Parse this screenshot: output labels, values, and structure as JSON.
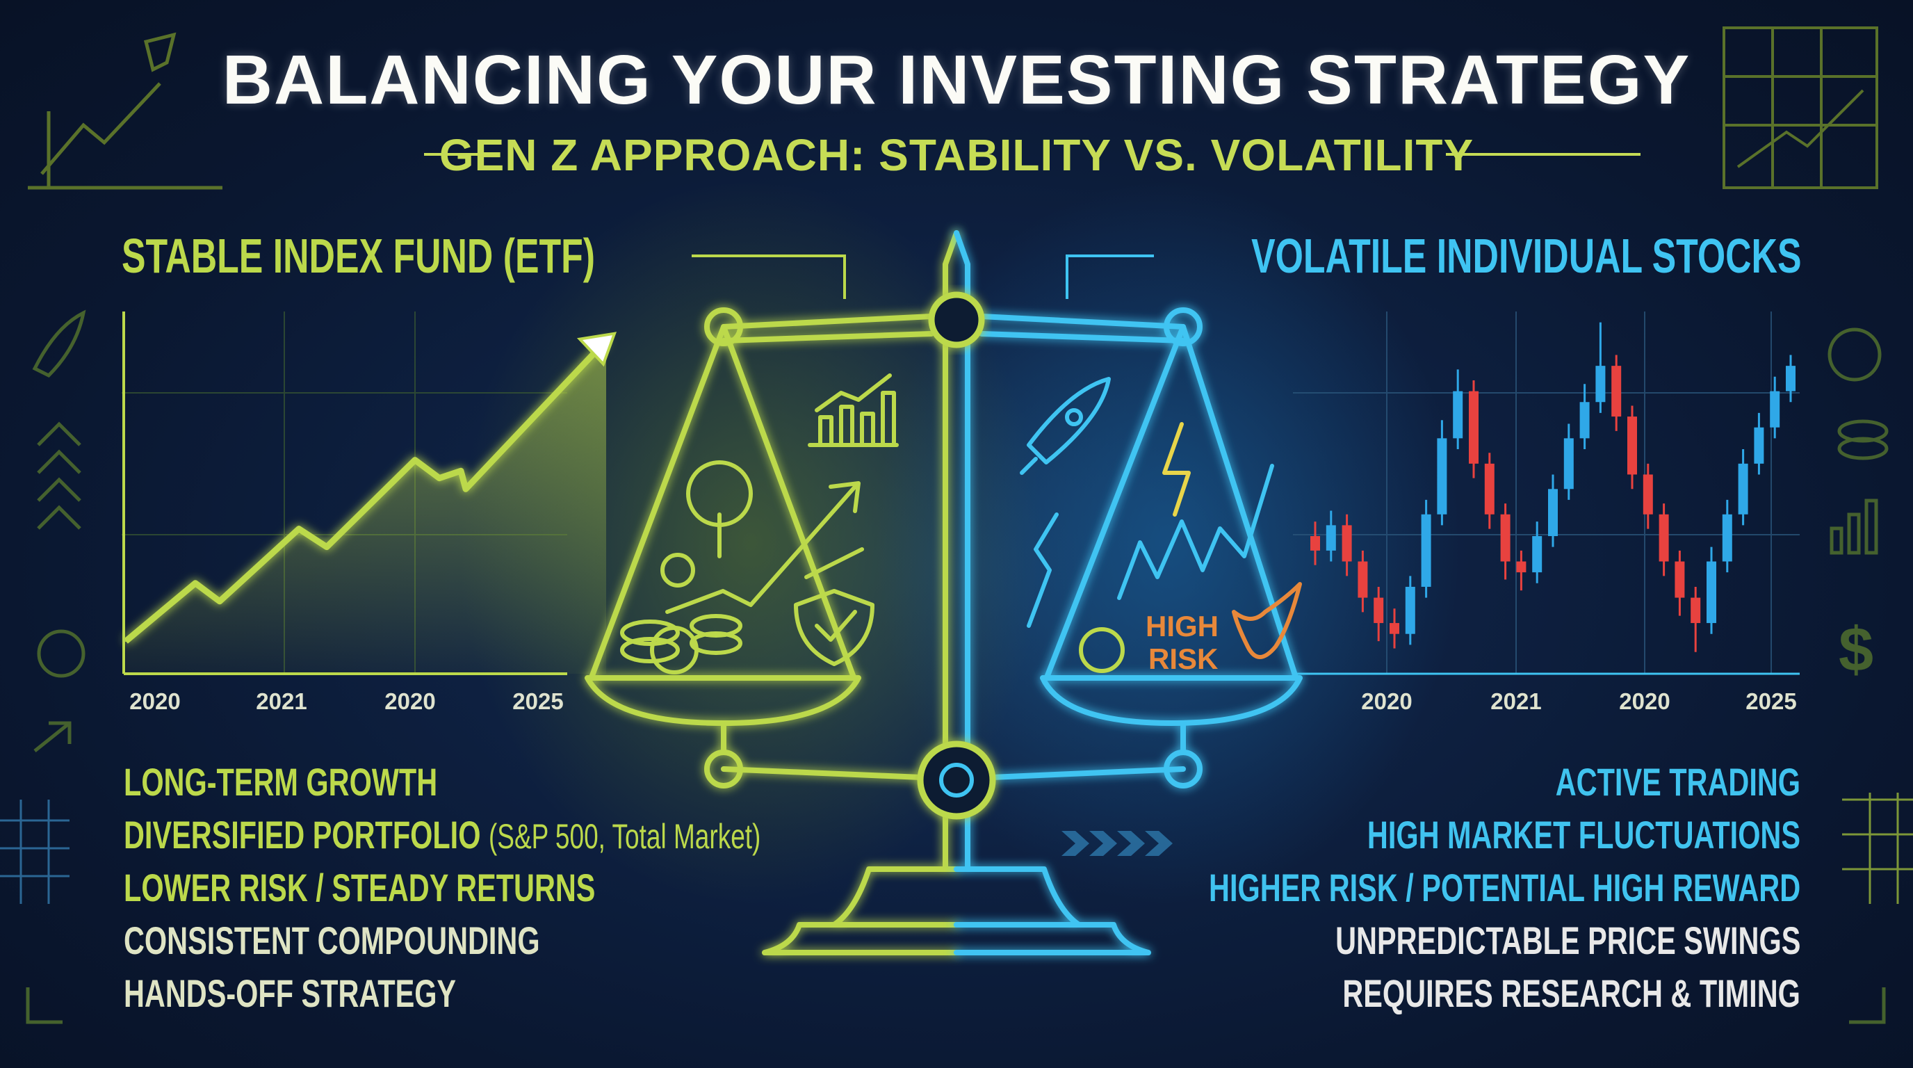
{
  "title": "BALANCING YOUR INVESTING STRATEGY",
  "subtitle": "GEN Z APPROACH: STABILITY VS. VOLATILITY",
  "colors": {
    "stable": "#bcd94b",
    "volatile": "#3fc4f2",
    "up_candle": "#2fa8e8",
    "down_candle": "#e8423f",
    "background": "#0c1a33",
    "risk_label": "#e8883a"
  },
  "left": {
    "heading": "STABLE INDEX FUND (ETF)",
    "points": [
      {
        "label": "LONG-TERM GROWTH"
      },
      {
        "label": "DIVERSIFIED PORTFOLIO",
        "note": "(S&P 500, Total Market)"
      },
      {
        "label": "LOWER RISK / STEADY RETURNS"
      },
      {
        "label": "CONSISTENT COMPOUNDING"
      },
      {
        "label": "HANDS-OFF STRATEGY"
      }
    ]
  },
  "right": {
    "heading": "VOLATILE INDIVIDUAL STOCKS",
    "points": [
      {
        "label": "ACTIVE TRADING"
      },
      {
        "label": "HIGH MARKET FLUCTUATIONS"
      },
      {
        "label": "HIGHER RISK / POTENTIAL HIGH REWARD"
      },
      {
        "label": "UNPREDICTABLE PRICE SWINGS"
      },
      {
        "label": "REQUIRES RESEARCH & TIMING"
      }
    ]
  },
  "scale": {
    "left_pan_icons": [
      "tree-icon",
      "dollar-coin-icon",
      "coin-stack-icon",
      "shield-check-icon",
      "trend-arrow-icon",
      "bar-chart-icon"
    ],
    "right_pan_icons": [
      "rocket-icon",
      "lightning-icon",
      "zigzag-icon",
      "coin-icon",
      "bull-icon"
    ],
    "risk_label_line1": "HIGH",
    "risk_label_line2": "RISK"
  },
  "chart_data": [
    {
      "type": "area",
      "xlabel": "",
      "ylabel": "",
      "x_tick_labels": [
        "2020",
        "2021",
        "2020",
        "2025"
      ],
      "values": [
        9,
        25,
        20,
        40,
        35,
        59,
        54,
        56,
        51,
        92
      ],
      "ylim": [
        0,
        100
      ],
      "grid": true,
      "color": "#bcd94b"
    },
    {
      "type": "candlestick",
      "xlabel": "",
      "ylabel": "",
      "x_tick_labels": [
        "2020",
        "2021",
        "2020",
        "2025"
      ],
      "ylim": [
        0,
        100
      ],
      "grid": true,
      "candles": [
        [
          38,
          42,
          30,
          34
        ],
        [
          34,
          45,
          31,
          41
        ],
        [
          41,
          44,
          27,
          31
        ],
        [
          31,
          34,
          17,
          21
        ],
        [
          21,
          24,
          9,
          14
        ],
        [
          14,
          18,
          7,
          11
        ],
        [
          11,
          27,
          8,
          24
        ],
        [
          24,
          48,
          21,
          44
        ],
        [
          44,
          70,
          41,
          65
        ],
        [
          65,
          84,
          62,
          78
        ],
        [
          78,
          81,
          54,
          58
        ],
        [
          58,
          61,
          40,
          44
        ],
        [
          44,
          47,
          26,
          31
        ],
        [
          31,
          34,
          23,
          28
        ],
        [
          28,
          42,
          25,
          38
        ],
        [
          38,
          55,
          35,
          51
        ],
        [
          51,
          69,
          48,
          65
        ],
        [
          65,
          80,
          62,
          75
        ],
        [
          75,
          97,
          72,
          85
        ],
        [
          85,
          88,
          67,
          71
        ],
        [
          71,
          74,
          51,
          55
        ],
        [
          55,
          58,
          40,
          44
        ],
        [
          44,
          47,
          27,
          31
        ],
        [
          31,
          34,
          16,
          21
        ],
        [
          21,
          24,
          6,
          14
        ],
        [
          14,
          35,
          11,
          31
        ],
        [
          31,
          48,
          28,
          44
        ],
        [
          44,
          62,
          41,
          58
        ],
        [
          58,
          72,
          55,
          68
        ],
        [
          68,
          82,
          65,
          78
        ],
        [
          78,
          88,
          75,
          85
        ]
      ]
    }
  ]
}
